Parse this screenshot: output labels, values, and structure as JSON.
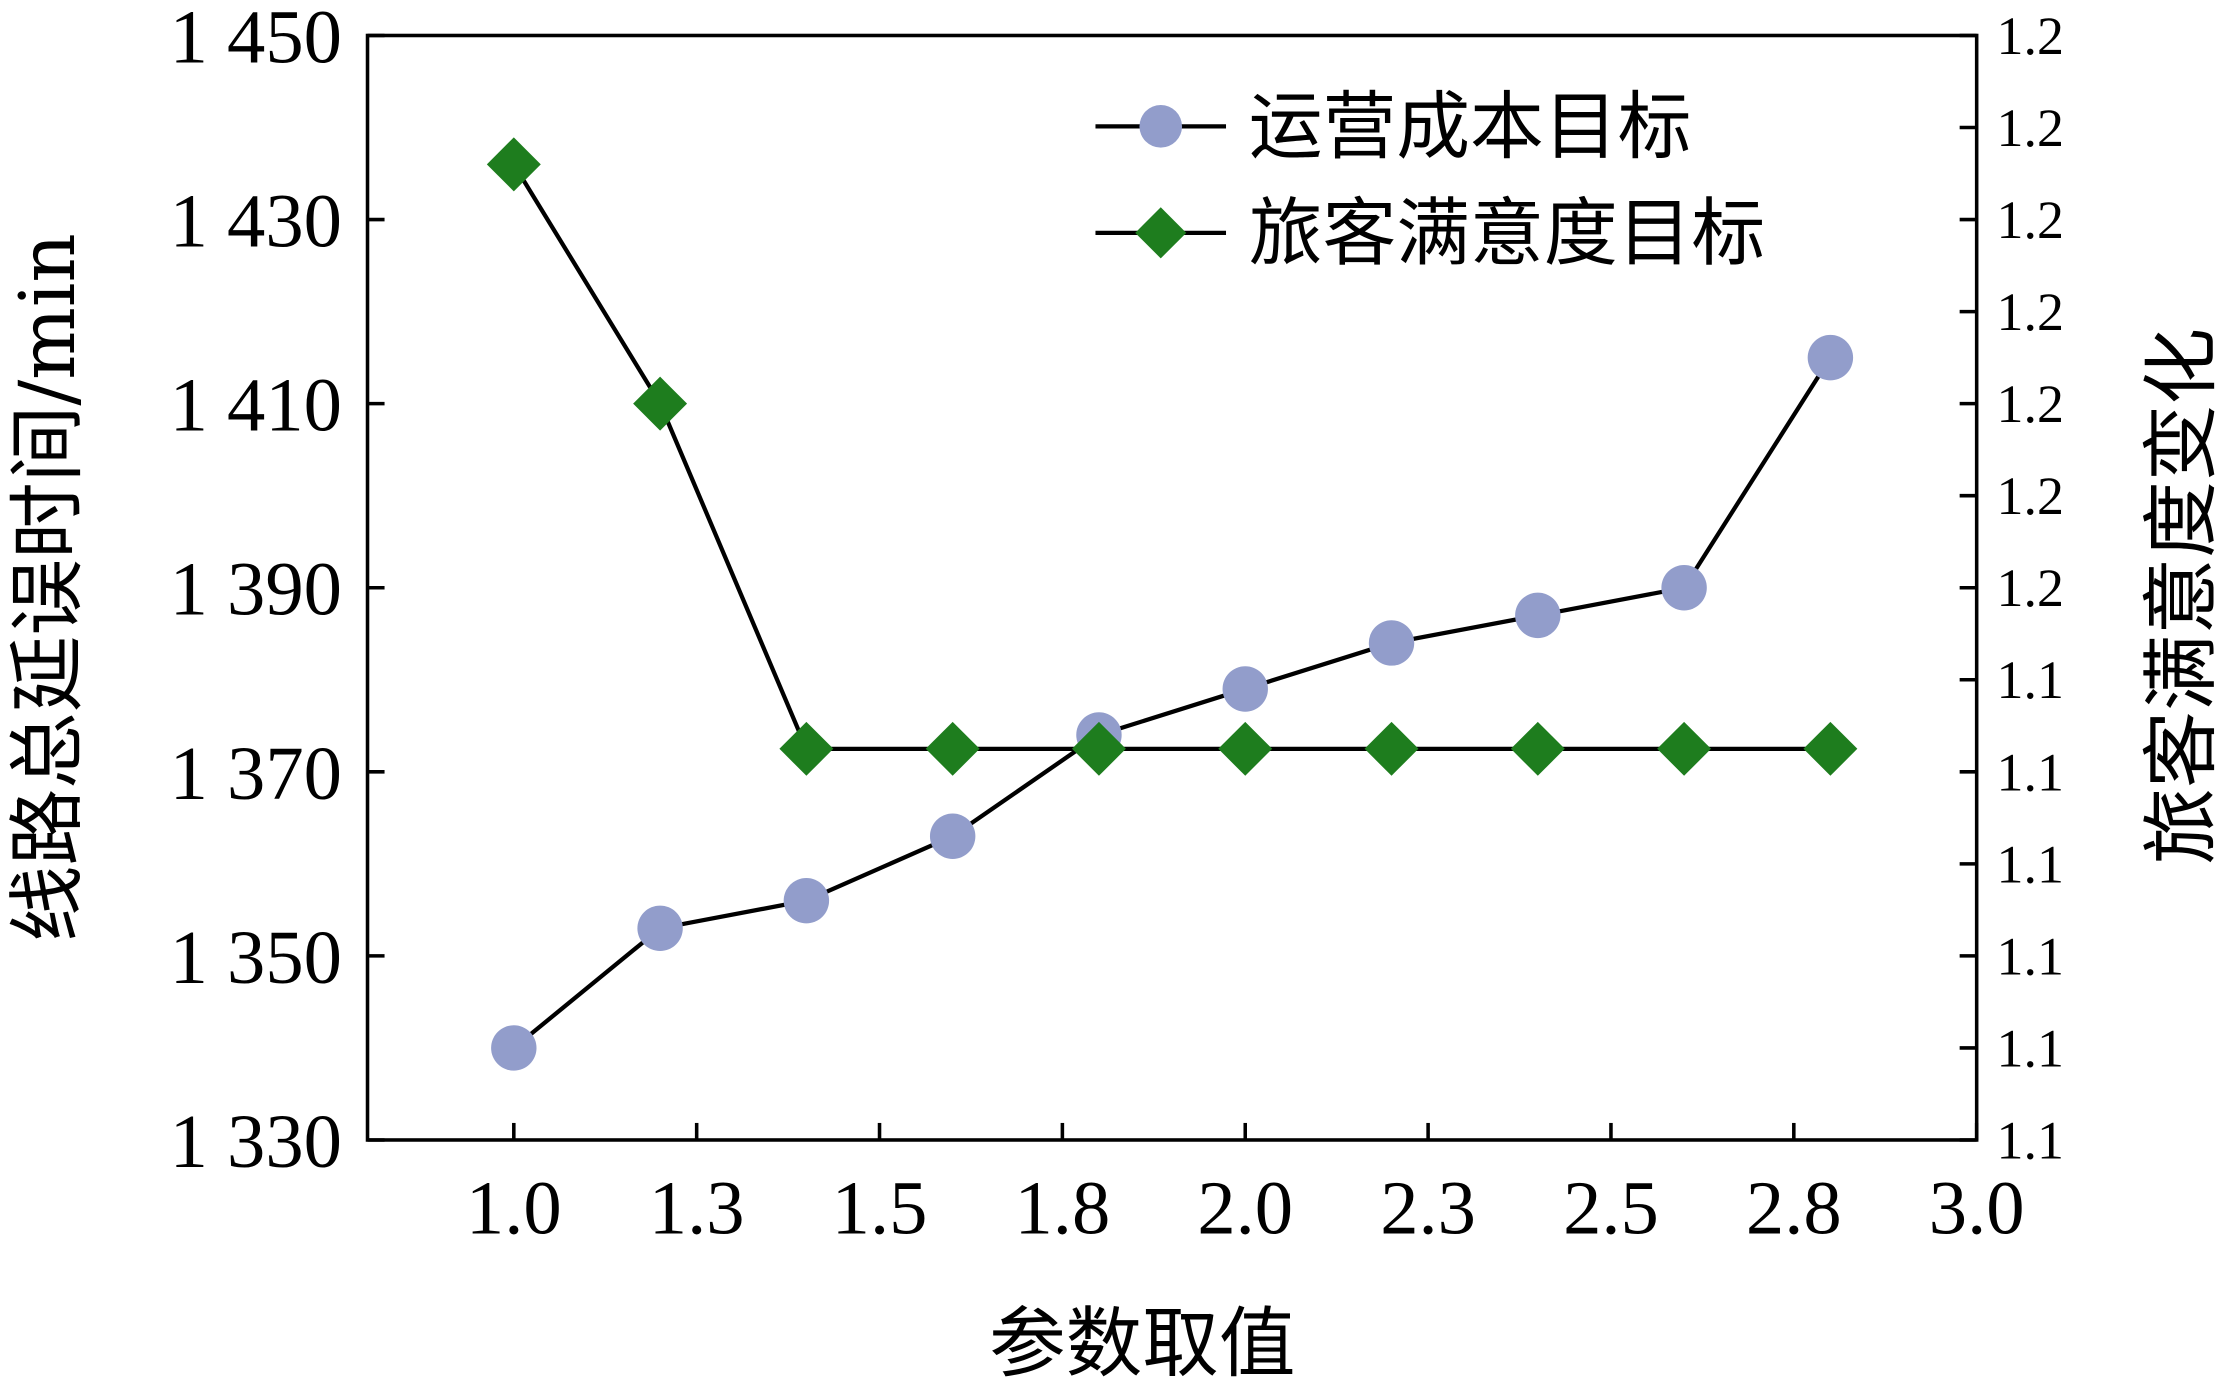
{
  "chart_data": {
    "type": "line",
    "xlabel": "参数取值",
    "ylabel_left": "线路总延误时间/min",
    "ylabel_right": "旅客满意度变化",
    "x_axis": {
      "ticks": [
        1.0,
        1.25,
        1.5,
        1.75,
        2.0,
        2.25,
        2.5,
        2.75,
        3.0
      ],
      "tick_labels": [
        "1.0",
        "1.3",
        "1.5",
        "1.8",
        "2.0",
        "2.3",
        "2.5",
        "2.8",
        "3.0"
      ],
      "range": [
        0.8,
        3.0
      ]
    },
    "y_left": {
      "range": [
        1330,
        1450
      ],
      "ticks": [
        1330,
        1350,
        1370,
        1390,
        1410,
        1430,
        1450
      ],
      "tick_labels": [
        "1 330",
        "1 350",
        "1 370",
        "1 390",
        "1 410",
        "1 430",
        "1 450"
      ]
    },
    "y_right": {
      "range": [
        0,
        12
      ],
      "ticks": [
        0,
        1,
        2,
        3,
        4,
        5,
        6,
        7,
        8,
        9,
        10,
        11,
        12
      ],
      "tick_labels": [
        "1.1",
        "1.1",
        "1.1",
        "1.1",
        "1.1",
        "1.1",
        "1.2",
        "1.2",
        "1.2",
        "1.2",
        "1.2",
        "1.2",
        "1.2"
      ]
    },
    "series": [
      {
        "name": "运营成本目标",
        "axis": "left",
        "marker": "circle",
        "color": "#929dcb",
        "x": [
          1.0,
          1.2,
          1.4,
          1.6,
          1.8,
          2.0,
          2.2,
          2.4,
          2.6,
          2.8
        ],
        "y": [
          1340,
          1353,
          1356,
          1363,
          1374,
          1379,
          1384,
          1387,
          1390,
          1415
        ]
      },
      {
        "name": "旅客满意度目标",
        "axis": "left",
        "marker": "diamond",
        "color": "#1e7d1e",
        "x": [
          1.0,
          1.2,
          1.4,
          1.6,
          1.8,
          2.0,
          2.2,
          2.4,
          2.6,
          2.8
        ],
        "y": [
          1436,
          1410,
          1372.5,
          1372.5,
          1372.5,
          1372.5,
          1372.5,
          1372.5,
          1372.5,
          1372.5
        ]
      }
    ],
    "legend_position": "top-right",
    "grid": false
  }
}
